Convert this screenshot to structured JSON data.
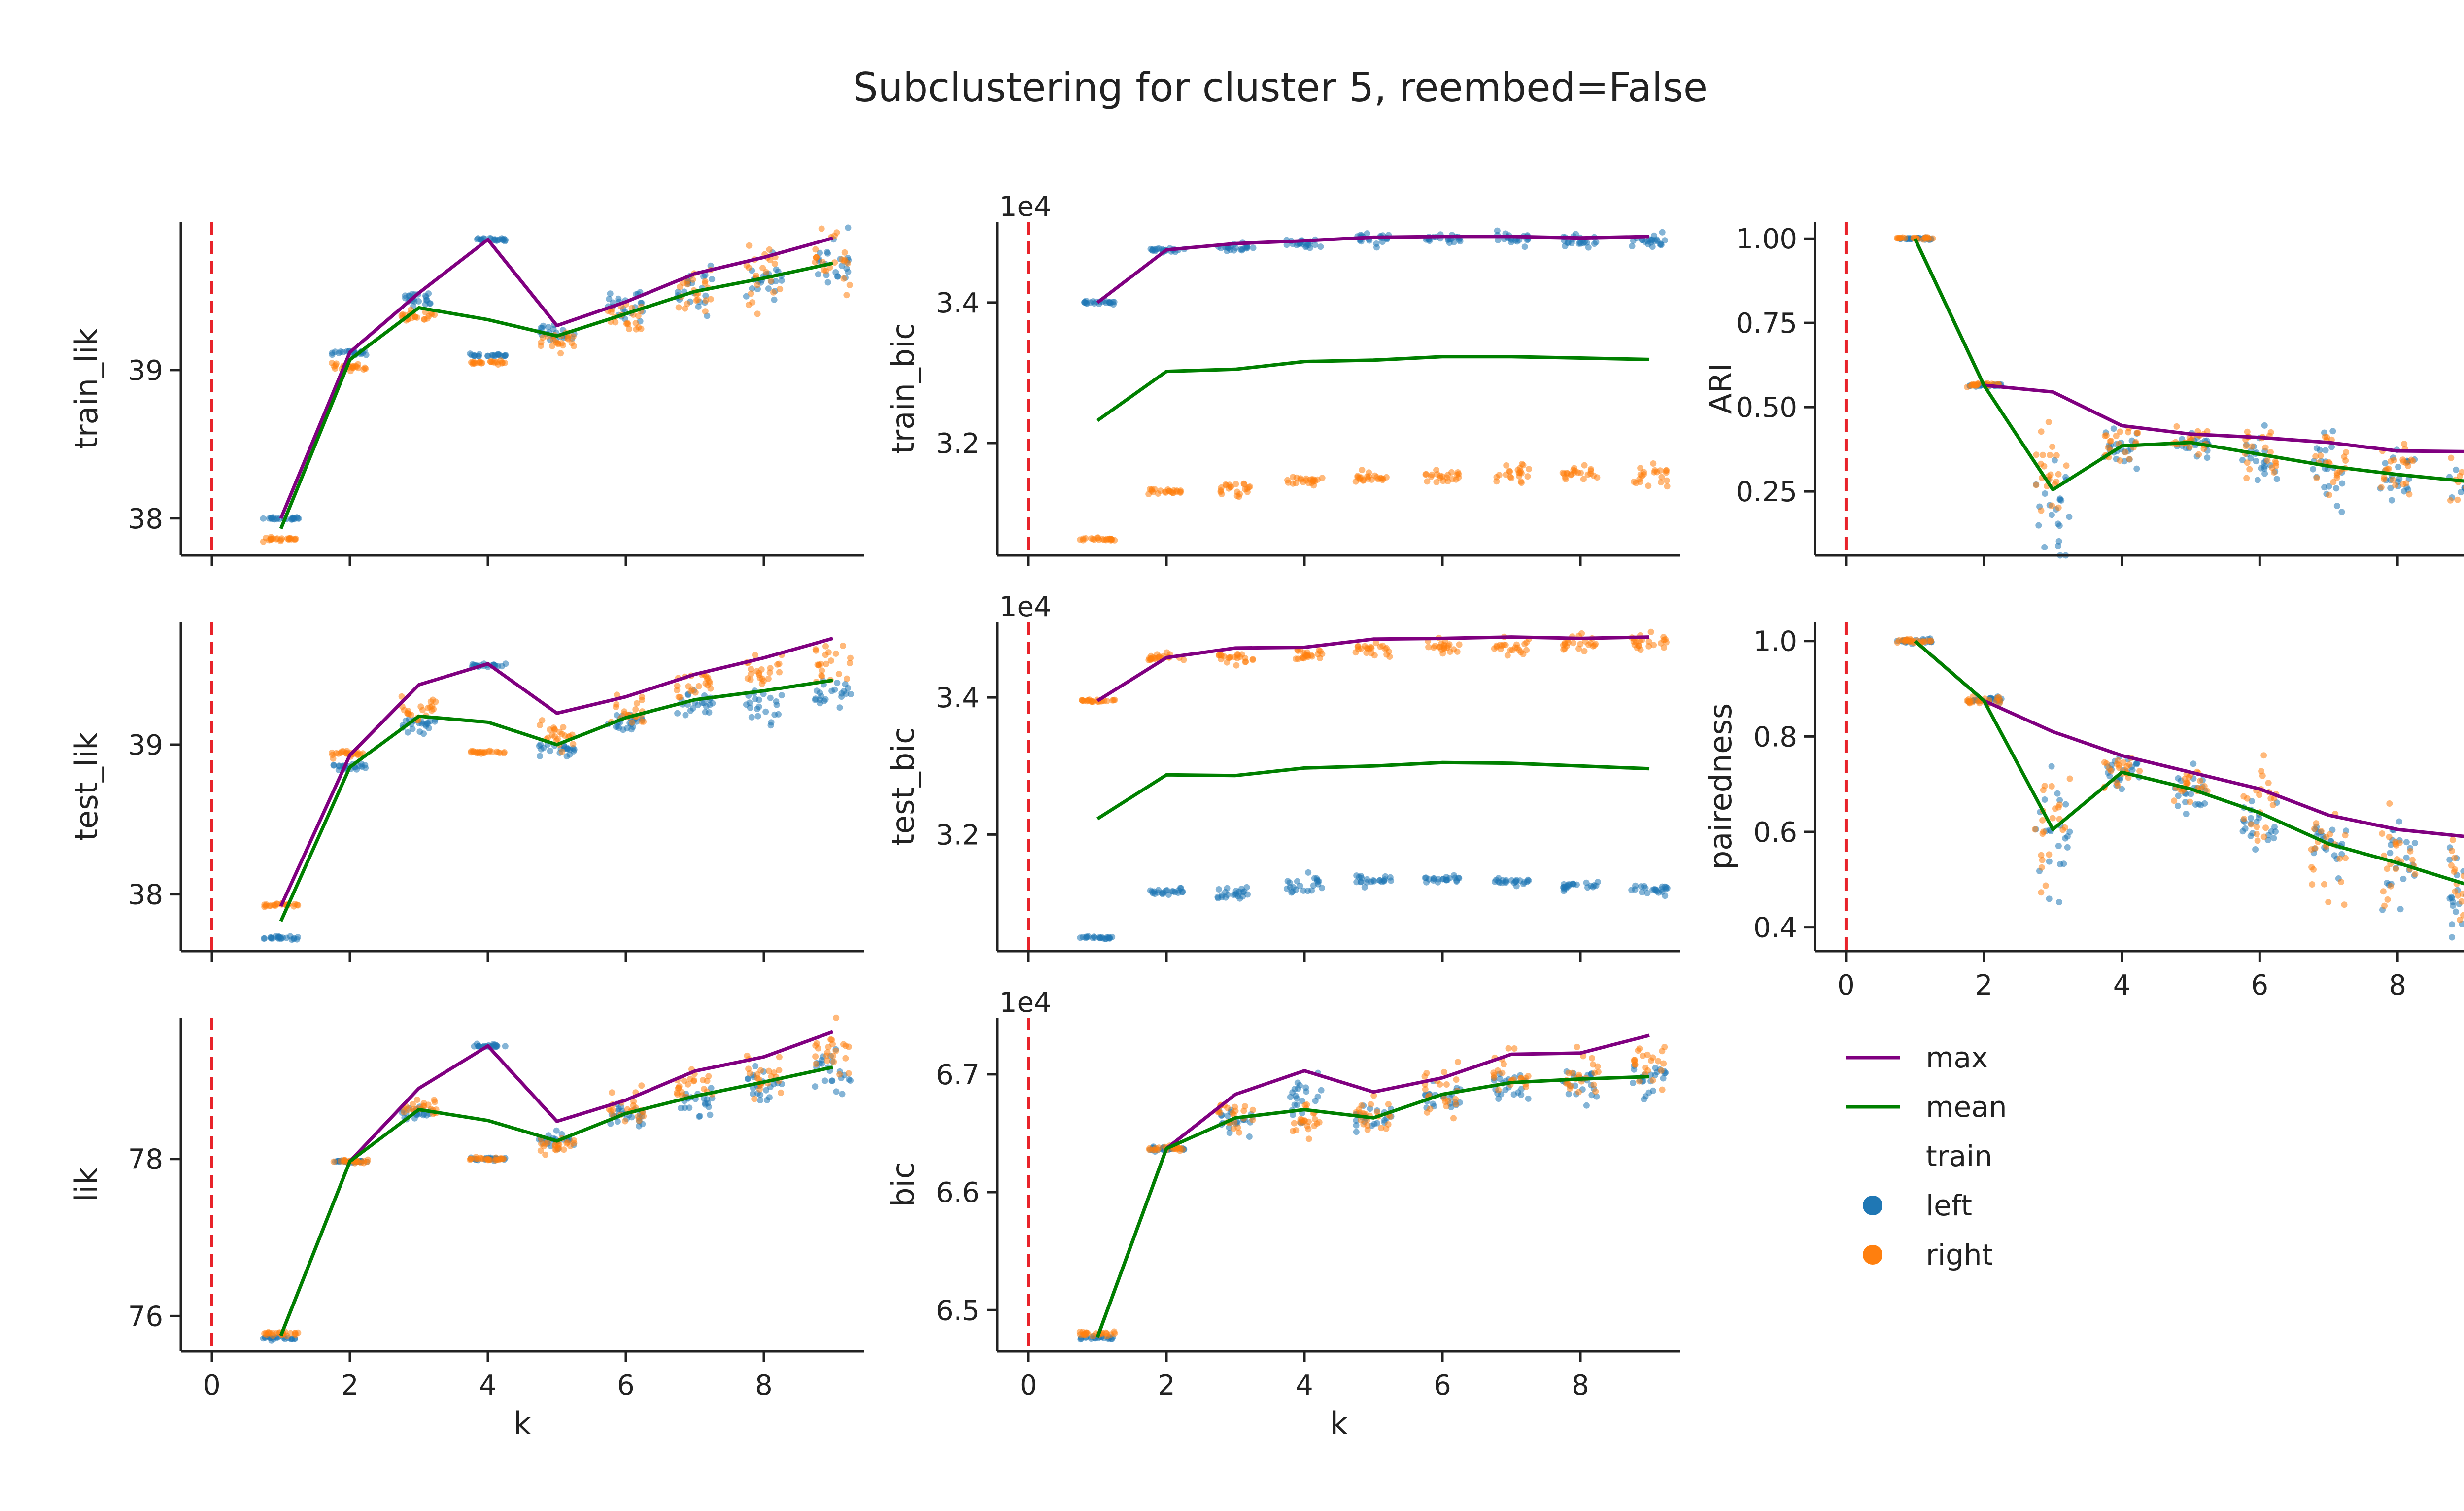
{
  "figure": {
    "title": "Subclustering for cluster 5, reembed=False"
  },
  "colors": {
    "max": "#800080",
    "mean": "#008000",
    "left": "#1f77b4",
    "right": "#ff7f0e",
    "ref_line": "#e8232a"
  },
  "legend": {
    "max_label": "max",
    "mean_label": "mean",
    "hue_title": "train",
    "left_label": "left",
    "right_label": "right"
  },
  "chart_data": [
    {
      "id": "train_lik",
      "type": "scatter",
      "ylabel": "train_lik",
      "xlabel": "",
      "xlim": [
        -0.45,
        9.45
      ],
      "ylim": [
        37.75,
        40.0
      ],
      "yticks": [
        38,
        39
      ],
      "ytick_labels": [
        "38",
        "39"
      ],
      "xticks": [
        0,
        2,
        4,
        6,
        8
      ],
      "xtick_labels": [],
      "ref_x": 0,
      "max": {
        "x": [
          1,
          2,
          3,
          4,
          5,
          6,
          7,
          8,
          9
        ],
        "y": [
          38.0,
          39.12,
          39.52,
          39.88,
          39.3,
          39.46,
          39.65,
          39.76,
          39.89
        ]
      },
      "mean": {
        "x": [
          1,
          2,
          3,
          4,
          5,
          6,
          7,
          8,
          9
        ],
        "y": [
          37.93,
          39.07,
          39.42,
          39.34,
          39.23,
          39.38,
          39.53,
          39.62,
          39.72
        ]
      },
      "left": {
        "x": [
          1,
          2,
          3,
          4,
          4,
          5,
          6,
          7,
          8,
          9
        ],
        "y": [
          38.0,
          39.12,
          39.48,
          39.88,
          39.1,
          39.24,
          39.44,
          39.55,
          39.62,
          39.73
        ],
        "spread": [
          0.005,
          0.01,
          0.02,
          0.005,
          0.005,
          0.03,
          0.05,
          0.08,
          0.08,
          0.08
        ]
      },
      "right": {
        "x": [
          1,
          2,
          3,
          4,
          5,
          6,
          7,
          8,
          9
        ],
        "y": [
          37.86,
          39.02,
          39.36,
          39.05,
          39.2,
          39.34,
          39.52,
          39.62,
          39.72
        ],
        "spread": [
          0.005,
          0.01,
          0.02,
          0.005,
          0.03,
          0.06,
          0.1,
          0.1,
          0.1
        ]
      }
    },
    {
      "id": "train_bic",
      "type": "scatter",
      "ylabel": "train_bic",
      "xlabel": "",
      "offset_label": "1e4",
      "xlim": [
        -0.45,
        9.45
      ],
      "ylim": [
        3.04,
        3.515
      ],
      "yticks": [
        3.2,
        3.4
      ],
      "ytick_labels": [
        "3.2",
        "3.4"
      ],
      "xticks": [
        0,
        2,
        4,
        6,
        8
      ],
      "xtick_labels": [],
      "ref_x": 0,
      "max": {
        "x": [
          1,
          2,
          3,
          4,
          5,
          6,
          7,
          8,
          9
        ],
        "y": [
          3.4,
          3.475,
          3.484,
          3.488,
          3.493,
          3.494,
          3.494,
          3.492,
          3.494
        ]
      },
      "mean": {
        "x": [
          1,
          2,
          3,
          4,
          5,
          6,
          7,
          8,
          9
        ],
        "y": [
          3.232,
          3.302,
          3.305,
          3.316,
          3.318,
          3.323,
          3.323,
          3.321,
          3.319
        ]
      },
      "left": {
        "x": [
          1,
          2,
          3,
          4,
          5,
          6,
          7,
          8,
          9
        ],
        "y": [
          3.4,
          3.475,
          3.478,
          3.484,
          3.49,
          3.491,
          3.49,
          3.488,
          3.488
        ],
        "spread": [
          0.001,
          0.002,
          0.004,
          0.004,
          0.004,
          0.004,
          0.004,
          0.004,
          0.005
        ]
      },
      "right": {
        "x": [
          1,
          2,
          3,
          4,
          5,
          6,
          7,
          8,
          9
        ],
        "y": [
          3.063,
          3.131,
          3.134,
          3.147,
          3.149,
          3.154,
          3.156,
          3.155,
          3.153
        ],
        "spread": [
          0.001,
          0.002,
          0.005,
          0.003,
          0.004,
          0.005,
          0.006,
          0.006,
          0.007
        ]
      }
    },
    {
      "id": "ARI",
      "type": "scatter",
      "ylabel": "ARI",
      "xlabel": "",
      "xlim": [
        -0.45,
        9.45
      ],
      "ylim": [
        0.06,
        1.05
      ],
      "yticks": [
        0.25,
        0.5,
        0.75,
        1.0
      ],
      "ytick_labels": [
        "0.25",
        "0.50",
        "0.75",
        "1.00"
      ],
      "xticks": [
        0,
        2,
        4,
        6,
        8
      ],
      "xtick_labels": [],
      "ref_x": 0,
      "max": {
        "x": [
          1,
          2,
          3,
          4,
          5,
          6,
          7,
          8,
          9
        ],
        "y": [
          1.0,
          0.565,
          0.545,
          0.445,
          0.42,
          0.41,
          0.395,
          0.37,
          0.368
        ]
      },
      "mean": {
        "x": [
          1,
          2,
          3,
          4,
          5,
          6,
          7,
          8,
          9
        ],
        "y": [
          1.0,
          0.565,
          0.255,
          0.385,
          0.395,
          0.36,
          0.325,
          0.3,
          0.28
        ]
      },
      "left": {
        "x": [
          1,
          2,
          3,
          4,
          5,
          6,
          7,
          8,
          9
        ],
        "y": [
          1.0,
          0.565,
          0.2,
          0.38,
          0.39,
          0.35,
          0.32,
          0.3,
          0.28
        ],
        "spread": [
          0.002,
          0.003,
          0.09,
          0.03,
          0.02,
          0.04,
          0.05,
          0.04,
          0.05
        ]
      },
      "right": {
        "x": [
          1,
          2,
          3,
          4,
          5,
          6,
          7,
          8,
          9
        ],
        "y": [
          1.0,
          0.565,
          0.3,
          0.39,
          0.4,
          0.37,
          0.33,
          0.3,
          0.28
        ],
        "spread": [
          0.002,
          0.003,
          0.07,
          0.03,
          0.02,
          0.04,
          0.05,
          0.04,
          0.05
        ]
      }
    },
    {
      "id": "test_lik",
      "type": "scatter",
      "ylabel": "test_lik",
      "xlabel": "",
      "xlim": [
        -0.45,
        9.45
      ],
      "ylim": [
        37.62,
        39.82
      ],
      "yticks": [
        38,
        39
      ],
      "ytick_labels": [
        "38",
        "39"
      ],
      "xticks": [
        0,
        2,
        4,
        6,
        8
      ],
      "xtick_labels": [],
      "ref_x": 0,
      "max": {
        "x": [
          1,
          2,
          3,
          4,
          5,
          6,
          7,
          8,
          9
        ],
        "y": [
          37.92,
          38.93,
          39.4,
          39.54,
          39.21,
          39.32,
          39.47,
          39.58,
          39.71
        ]
      },
      "mean": {
        "x": [
          1,
          2,
          3,
          4,
          5,
          6,
          7,
          8,
          9
        ],
        "y": [
          37.82,
          38.85,
          39.19,
          39.15,
          39.0,
          39.18,
          39.3,
          39.36,
          39.43
        ]
      },
      "left": {
        "x": [
          1,
          2,
          3,
          4,
          5,
          6,
          7,
          8,
          9
        ],
        "y": [
          37.71,
          38.85,
          39.13,
          39.53,
          38.97,
          39.14,
          39.25,
          39.26,
          39.33
        ],
        "spread": [
          0.005,
          0.01,
          0.03,
          0.005,
          0.02,
          0.04,
          0.05,
          0.05,
          0.06
        ]
      },
      "right": {
        "x": [
          1,
          2,
          3,
          4,
          5,
          6,
          7,
          8,
          9
        ],
        "y": [
          37.93,
          38.94,
          39.25,
          38.95,
          39.07,
          39.22,
          39.38,
          39.48,
          39.55
        ],
        "spread": [
          0.005,
          0.01,
          0.04,
          0.005,
          0.04,
          0.06,
          0.05,
          0.06,
          0.08
        ]
      }
    },
    {
      "id": "test_bic",
      "type": "scatter",
      "ylabel": "test_bic",
      "xlabel": "",
      "offset_label": "1e4",
      "xlim": [
        -0.45,
        9.45
      ],
      "ylim": [
        3.03,
        3.51
      ],
      "yticks": [
        3.2,
        3.4
      ],
      "ytick_labels": [
        "3.2",
        "3.4"
      ],
      "xticks": [
        0,
        2,
        4,
        6,
        8
      ],
      "xtick_labels": [],
      "ref_x": 0,
      "max": {
        "x": [
          1,
          2,
          3,
          4,
          5,
          6,
          7,
          8,
          9
        ],
        "y": [
          3.395,
          3.458,
          3.472,
          3.473,
          3.485,
          3.486,
          3.488,
          3.486,
          3.488
        ]
      },
      "mean": {
        "x": [
          1,
          2,
          3,
          4,
          5,
          6,
          7,
          8,
          9
        ],
        "y": [
          3.223,
          3.287,
          3.286,
          3.297,
          3.3,
          3.305,
          3.304,
          3.3,
          3.296
        ]
      },
      "left": {
        "x": [
          1,
          2,
          3,
          4,
          5,
          6,
          7,
          8,
          9
        ],
        "y": [
          3.05,
          3.117,
          3.115,
          3.123,
          3.133,
          3.134,
          3.131,
          3.125,
          3.12
        ],
        "spread": [
          0.001,
          0.002,
          0.005,
          0.008,
          0.004,
          0.003,
          0.003,
          0.003,
          0.004
        ]
      },
      "right": {
        "x": [
          1,
          2,
          3,
          4,
          5,
          6,
          7,
          8,
          9
        ],
        "y": [
          3.395,
          3.458,
          3.457,
          3.462,
          3.47,
          3.472,
          3.475,
          3.478,
          3.476
        ],
        "spread": [
          0.001,
          0.003,
          0.005,
          0.004,
          0.006,
          0.007,
          0.008,
          0.007,
          0.008
        ]
      }
    },
    {
      "id": "paired",
      "type": "scatter",
      "ylabel": "pairedness",
      "xlabel": "",
      "xlim": [
        -0.45,
        9.45
      ],
      "ylim": [
        0.35,
        1.04
      ],
      "yticks": [
        0.4,
        0.6,
        0.8,
        1.0
      ],
      "ytick_labels": [
        "0.4",
        "0.6",
        "0.8",
        "1.0"
      ],
      "xticks": [
        0,
        2,
        4,
        6,
        8
      ],
      "xtick_labels": [
        "0",
        "2",
        "4",
        "6",
        "8"
      ],
      "ref_x": 0,
      "max": {
        "x": [
          1,
          2,
          3,
          4,
          5,
          6,
          7,
          8,
          9
        ],
        "y": [
          1.0,
          0.875,
          0.81,
          0.76,
          0.725,
          0.69,
          0.635,
          0.605,
          0.59
        ]
      },
      "mean": {
        "x": [
          1,
          2,
          3,
          4,
          5,
          6,
          7,
          8,
          9
        ],
        "y": [
          1.0,
          0.875,
          0.605,
          0.725,
          0.69,
          0.64,
          0.575,
          0.535,
          0.49
        ]
      },
      "left": {
        "x": [
          1,
          2,
          3,
          4,
          5,
          6,
          7,
          8,
          9
        ],
        "y": [
          1.0,
          0.875,
          0.58,
          0.72,
          0.68,
          0.62,
          0.57,
          0.53,
          0.48
        ],
        "spread": [
          0.002,
          0.004,
          0.06,
          0.02,
          0.02,
          0.04,
          0.04,
          0.05,
          0.05
        ]
      },
      "right": {
        "x": [
          1,
          2,
          3,
          4,
          5,
          6,
          7,
          8,
          9
        ],
        "y": [
          1.0,
          0.875,
          0.63,
          0.73,
          0.7,
          0.66,
          0.58,
          0.54,
          0.5
        ],
        "spread": [
          0.002,
          0.004,
          0.06,
          0.02,
          0.02,
          0.04,
          0.05,
          0.05,
          0.05
        ]
      }
    },
    {
      "id": "lik",
      "type": "scatter",
      "ylabel": "lik",
      "xlabel": "k",
      "xlim": [
        -0.45,
        9.45
      ],
      "ylim": [
        75.55,
        79.8
      ],
      "yticks": [
        76,
        78
      ],
      "ytick_labels": [
        "76",
        "78"
      ],
      "xticks": [
        0,
        2,
        4,
        6,
        8
      ],
      "xtick_labels": [
        "0",
        "2",
        "4",
        "6",
        "8"
      ],
      "ref_x": 0,
      "max": {
        "x": [
          1,
          2,
          3,
          4,
          5,
          6,
          7,
          8,
          9
        ],
        "y": [
          75.75,
          77.97,
          78.9,
          79.44,
          78.48,
          78.75,
          79.12,
          79.3,
          79.62
        ]
      },
      "mean": {
        "x": [
          1,
          2,
          3,
          4,
          5,
          6,
          7,
          8,
          9
        ],
        "y": [
          75.75,
          77.97,
          78.63,
          78.49,
          78.23,
          78.58,
          78.8,
          78.98,
          79.17
        ]
      },
      "left": {
        "x": [
          1,
          2,
          3,
          4,
          4,
          5,
          6,
          7,
          8,
          9
        ],
        "y": [
          75.72,
          77.97,
          78.6,
          79.44,
          78.0,
          78.25,
          78.55,
          78.72,
          78.93,
          79.08
        ],
        "spread": [
          0.01,
          0.01,
          0.05,
          0.01,
          0.01,
          0.06,
          0.1,
          0.12,
          0.12,
          0.12
        ]
      },
      "right": {
        "x": [
          1,
          2,
          3,
          4,
          5,
          6,
          7,
          8,
          9
        ],
        "y": [
          75.78,
          77.97,
          78.68,
          78.0,
          78.18,
          78.62,
          78.9,
          79.1,
          79.3
        ],
        "spread": [
          0.01,
          0.01,
          0.06,
          0.01,
          0.06,
          0.12,
          0.12,
          0.12,
          0.14
        ]
      }
    },
    {
      "id": "bic",
      "type": "scatter",
      "ylabel": "bic",
      "xlabel": "k",
      "offset_label": "1e4",
      "xlim": [
        -0.45,
        9.45
      ],
      "ylim": [
        6.465,
        6.748
      ],
      "yticks": [
        6.5,
        6.6,
        6.7
      ],
      "ytick_labels": [
        "6.5",
        "6.6",
        "6.7"
      ],
      "xticks": [
        0,
        2,
        4,
        6,
        8
      ],
      "xtick_labels": [
        "0",
        "2",
        "4",
        "6",
        "8"
      ],
      "ref_x": 0,
      "max": {
        "x": [
          1,
          2,
          3,
          4,
          5,
          6,
          7,
          8,
          9
        ],
        "y": [
          6.477,
          6.637,
          6.683,
          6.703,
          6.685,
          6.697,
          6.717,
          6.718,
          6.733
        ]
      },
      "mean": {
        "x": [
          1,
          2,
          3,
          4,
          5,
          6,
          7,
          8,
          9
        ],
        "y": [
          6.477,
          6.637,
          6.663,
          6.67,
          6.663,
          6.683,
          6.693,
          6.696,
          6.698
        ]
      },
      "left": {
        "x": [
          1,
          2,
          3,
          4,
          5,
          6,
          7,
          8,
          9
        ],
        "y": [
          6.476,
          6.637,
          6.66,
          6.68,
          6.662,
          6.682,
          6.69,
          6.692,
          6.695
        ],
        "spread": [
          0.001,
          0.001,
          0.006,
          0.012,
          0.005,
          0.006,
          0.008,
          0.008,
          0.008
        ]
      },
      "right": {
        "x": [
          1,
          2,
          3,
          4,
          5,
          6,
          7,
          8,
          9
        ],
        "y": [
          6.48,
          6.637,
          6.665,
          6.66,
          6.665,
          6.685,
          6.7,
          6.7,
          6.705
        ],
        "spread": [
          0.001,
          0.001,
          0.006,
          0.006,
          0.008,
          0.012,
          0.01,
          0.01,
          0.01
        ]
      }
    }
  ]
}
